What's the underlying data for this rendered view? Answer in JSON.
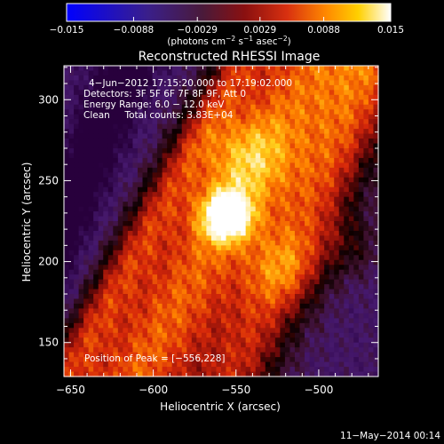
{
  "colorbar": {
    "ticks": [
      "−0.015",
      "−0.0088",
      "−0.0029",
      "0.0029",
      "0.0088",
      "0.015"
    ],
    "tick_values": [
      -0.015,
      -0.0088,
      -0.0029,
      0.0029,
      0.0088,
      0.015
    ],
    "range": [
      -0.015,
      0.015
    ],
    "units_prefix": "(photons cm",
    "units_exp1": "−2",
    "units_mid1": " s",
    "units_exp2": "−1",
    "units_mid2": " asec",
    "units_exp3": "−2",
    "units_suffix": ")",
    "colors": [
      "#0000ff",
      "#2a1a9a",
      "#4a2a7a",
      "#6a1a1a",
      "#a01010",
      "#d04010",
      "#ff8000",
      "#ffd000",
      "#ffffff"
    ]
  },
  "plot": {
    "title": "Reconstructed RHESSI Image",
    "xlabel": "Heliocentric X (arcsec)",
    "ylabel": "Heliocentric Y (arcsec)",
    "info_lines": [
      "4−Jun−2012 17:15:20.000 to 17:19:02.000",
      "Detectors: 3F 5F 6F 7F 8F 9F, Att 0",
      "Energy Range: 6.0 − 12.0 keV",
      "Clean     Total counts: 3.83E+04"
    ],
    "peak_label": "Position of Peak = [−556,228]",
    "footer_date": "11−May−2014 00:14"
  },
  "chart_data": {
    "type": "heatmap",
    "title": "Reconstructed RHESSI Image",
    "xlabel": "Heliocentric X (arcsec)",
    "ylabel": "Heliocentric Y (arcsec)",
    "xlim": [
      -654,
      -464
    ],
    "ylim": [
      129,
      321
    ],
    "x_ticks": [
      -650,
      -600,
      -550,
      -500
    ],
    "x_tick_labels": [
      "−650",
      "−600",
      "−550",
      "−500"
    ],
    "y_ticks": [
      150,
      200,
      250,
      300
    ],
    "y_tick_labels": [
      "150",
      "200",
      "250",
      "300"
    ],
    "peak": {
      "x": -556,
      "y": 228
    },
    "colorbar_range": [
      -0.015,
      0.015
    ]
  }
}
